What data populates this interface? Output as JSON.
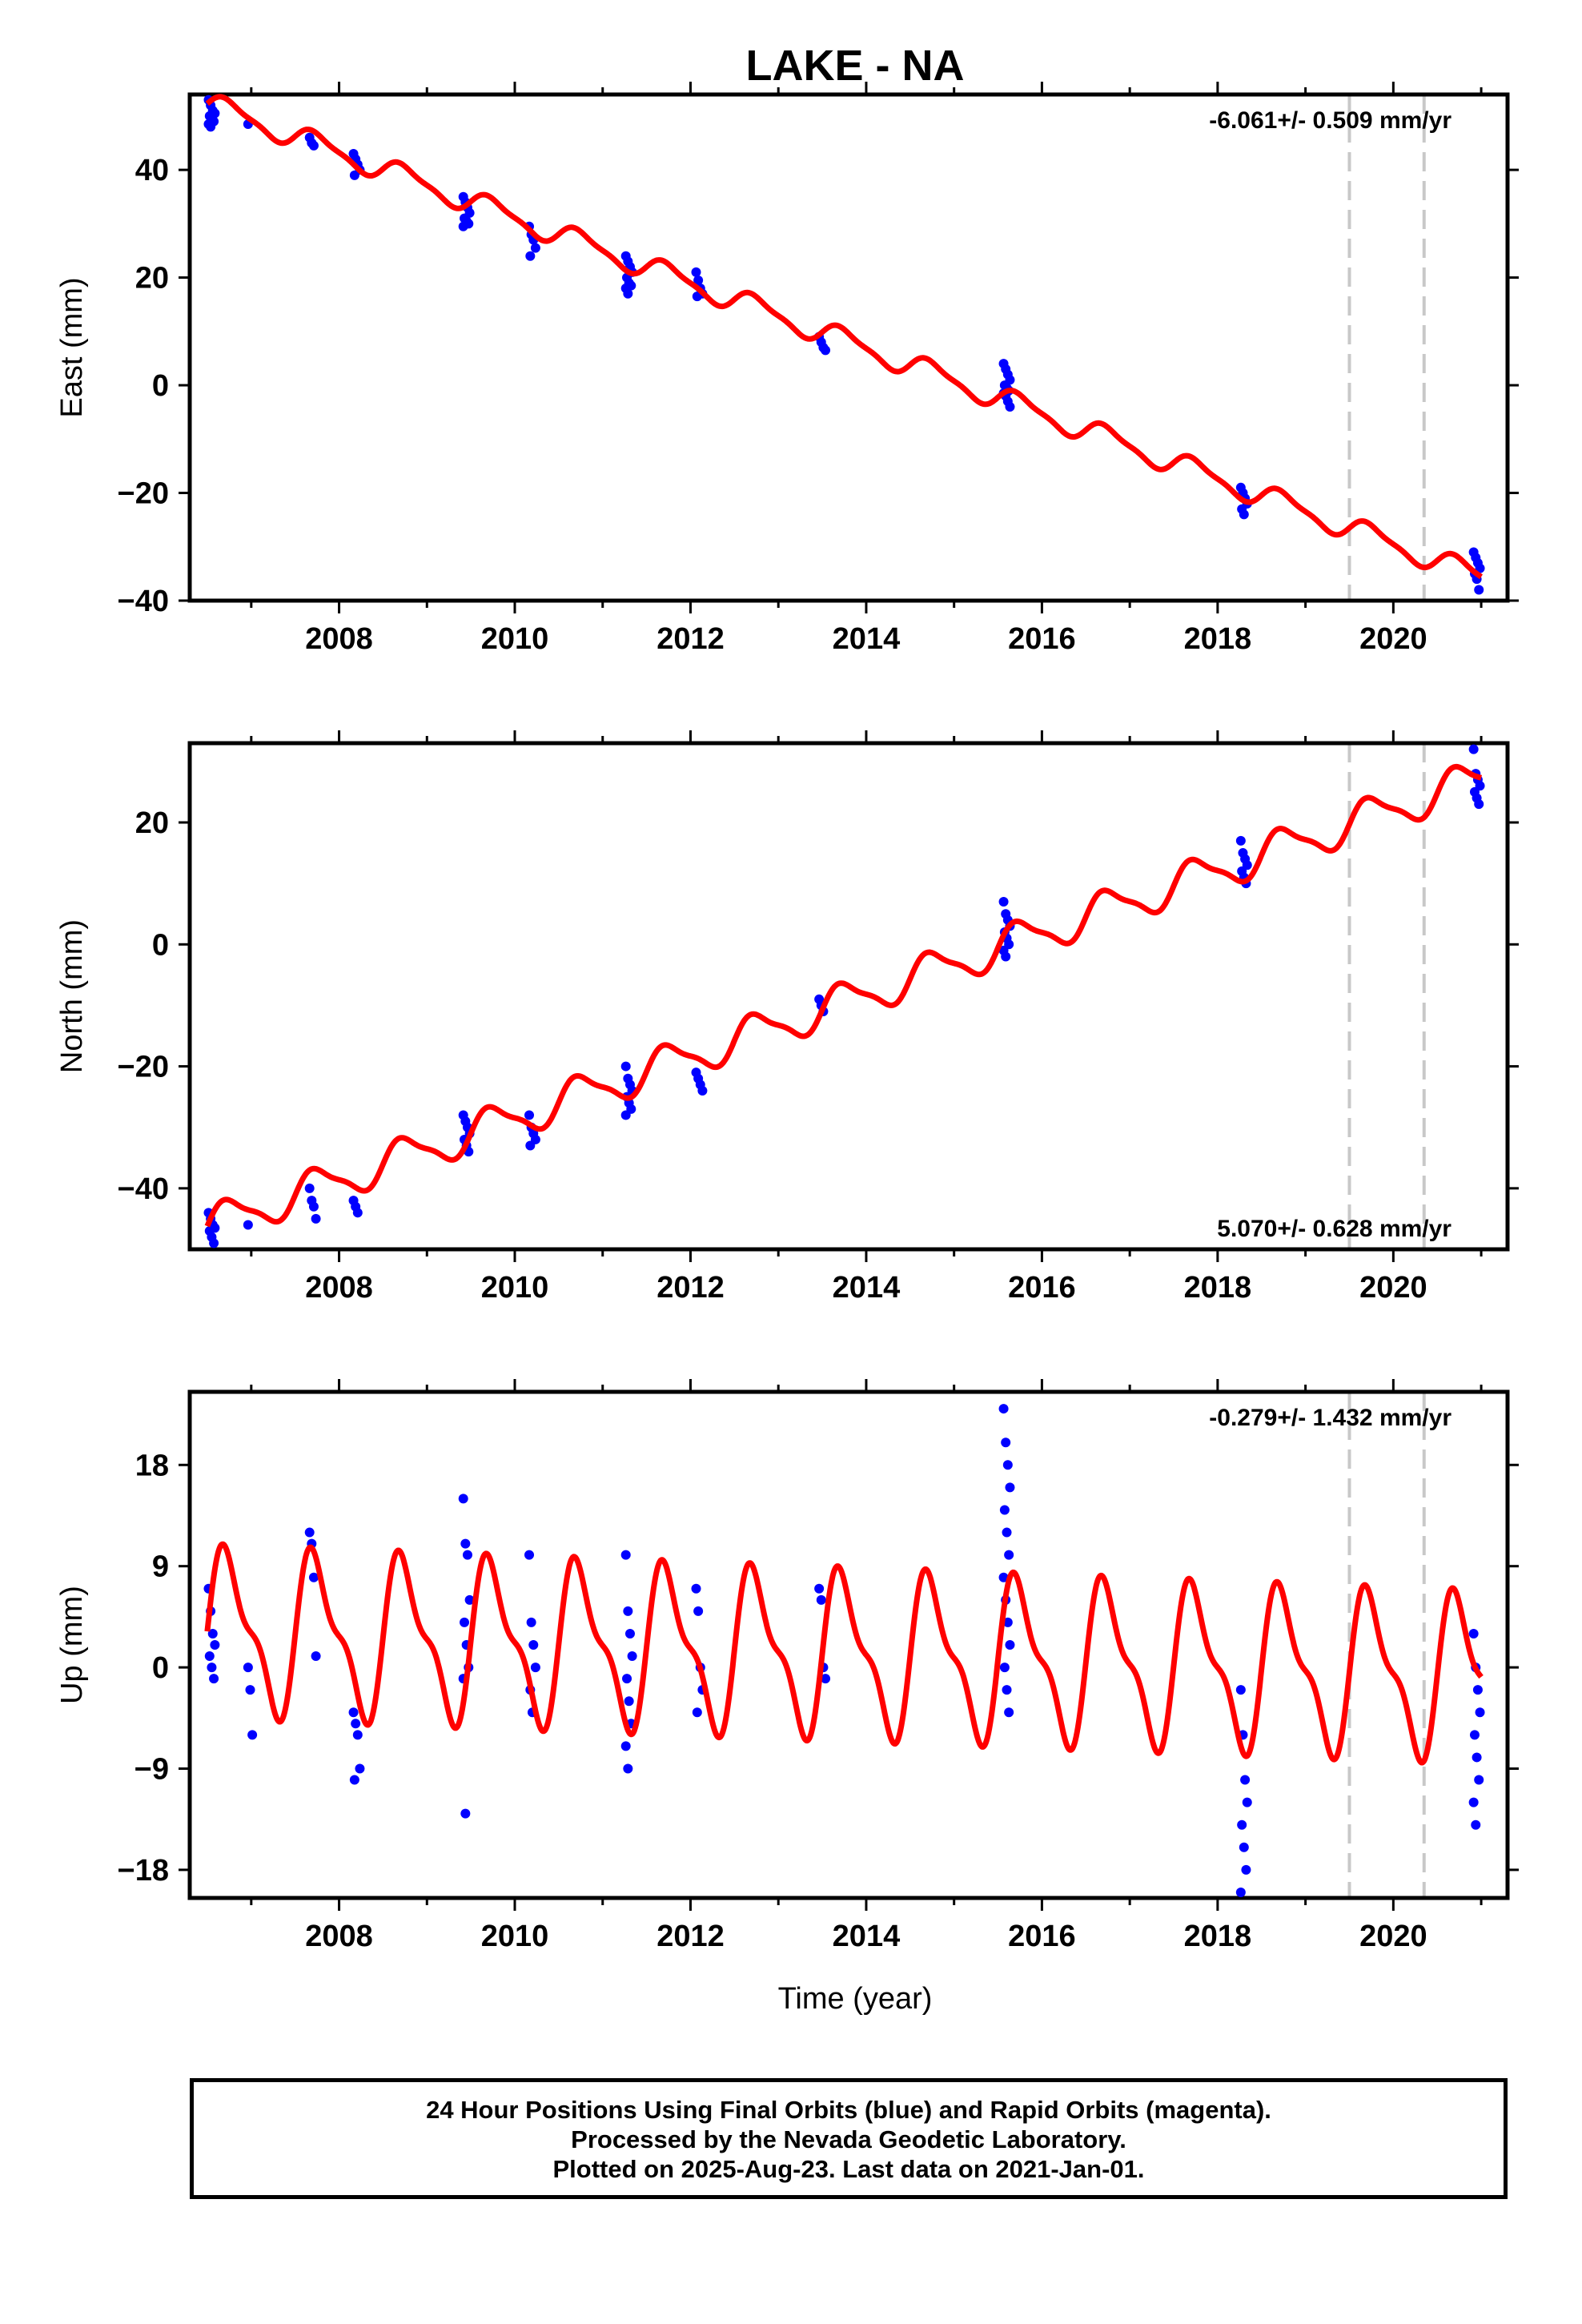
{
  "figure_title": "LAKE - NA",
  "xlabel": "Time (year)",
  "footer": {
    "line1": "24 Hour Positions Using Final Orbits (blue) and Rapid Orbits (magenta).",
    "line2": "Processed by the Nevada Geodetic Laboratory.",
    "line3": "Plotted on 2025-Aug-23. Last data on 2021-Jan-01."
  },
  "chart_data": [
    {
      "type": "scatter",
      "panel": "east",
      "ylabel": "East (mm)",
      "rate_label": "-6.061+/- 0.509 mm/yr",
      "rate_position": "top-right",
      "xlim": [
        2006.3,
        2021.3
      ],
      "ylim": [
        -40,
        54
      ],
      "x_ticks": [
        2008,
        2010,
        2012,
        2014,
        2016,
        2018,
        2020
      ],
      "y_ticks": [
        -40,
        -20,
        0,
        20,
        40
      ],
      "grid": false,
      "equipment_changes": [
        2019.5,
        2020.35
      ],
      "points_color": "#0000ff",
      "model_color": "#ff0000",
      "model": {
        "type": "linear+seasonal",
        "t0": 2006.5,
        "y0": 52.3,
        "slope": -6.061,
        "annual_amplitude": 2.0,
        "semiannual_amplitude": 0.6
      },
      "point_groups": [
        {
          "t": 2006.55,
          "values": [
            53,
            52,
            51,
            50.5,
            50,
            49.5,
            49,
            48.5,
            48
          ]
        },
        {
          "t": 2007.0,
          "values": [
            48.5
          ]
        },
        {
          "t": 2007.7,
          "values": [
            46,
            45,
            44.5
          ]
        },
        {
          "t": 2008.2,
          "values": [
            43,
            42,
            41,
            40,
            39
          ]
        },
        {
          "t": 2009.45,
          "values": [
            35,
            34,
            33,
            32,
            31,
            30.5,
            30,
            29.5
          ]
        },
        {
          "t": 2010.2,
          "values": [
            29.5,
            28,
            27,
            25.5,
            24
          ]
        },
        {
          "t": 2011.3,
          "values": [
            24,
            23,
            22,
            21,
            20,
            19,
            18.5,
            18,
            17
          ]
        },
        {
          "t": 2012.1,
          "values": [
            21,
            19.5,
            18,
            17,
            16.5
          ]
        },
        {
          "t": 2013.5,
          "values": [
            9,
            8,
            7,
            6.5
          ]
        },
        {
          "t": 2015.6,
          "values": [
            4,
            3,
            2,
            1,
            0,
            -0.5,
            -1,
            -1.5,
            -2,
            -3,
            -4
          ]
        },
        {
          "t": 2018.3,
          "values": [
            -19,
            -20,
            -21,
            -22,
            -23,
            -24
          ]
        },
        {
          "t": 2020.95,
          "values": [
            -31,
            -32,
            -33,
            -34,
            -35,
            -36,
            -38
          ]
        }
      ]
    },
    {
      "type": "scatter",
      "panel": "north",
      "ylabel": "North (mm)",
      "rate_label": "5.070+/- 0.628 mm/yr",
      "rate_position": "bottom-right",
      "xlim": [
        2006.3,
        2021.3
      ],
      "ylim": [
        -50,
        33
      ],
      "x_ticks": [
        2008,
        2010,
        2012,
        2014,
        2016,
        2018,
        2020
      ],
      "y_ticks": [
        -40,
        -20,
        0,
        20
      ],
      "grid": false,
      "equipment_changes": [
        2019.5,
        2020.35
      ],
      "points_color": "#0000ff",
      "model_color": "#ff0000",
      "model": {
        "type": "linear+seasonal",
        "t0": 2006.5,
        "y0": -46.2,
        "slope": 5.07,
        "annual_amplitude": 3.0,
        "semiannual_amplitude": 0.8
      },
      "point_groups": [
        {
          "t": 2006.55,
          "values": [
            -44,
            -45,
            -46,
            -46.5,
            -47,
            -48,
            -49
          ]
        },
        {
          "t": 2007.0,
          "values": [
            -46
          ]
        },
        {
          "t": 2007.7,
          "values": [
            -40,
            -42,
            -43,
            -45
          ]
        },
        {
          "t": 2008.2,
          "values": [
            -42,
            -43,
            -44
          ]
        },
        {
          "t": 2009.45,
          "values": [
            -28,
            -29,
            -30,
            -31,
            -32,
            -33,
            -34
          ]
        },
        {
          "t": 2010.2,
          "values": [
            -28,
            -30,
            -31,
            -32,
            -33
          ]
        },
        {
          "t": 2011.3,
          "values": [
            -20,
            -22,
            -23,
            -24,
            -25,
            -26,
            -27,
            -28
          ]
        },
        {
          "t": 2012.1,
          "values": [
            -21,
            -22,
            -23,
            -24
          ]
        },
        {
          "t": 2013.5,
          "values": [
            -9,
            -10,
            -11
          ]
        },
        {
          "t": 2015.6,
          "values": [
            7,
            5,
            4,
            3,
            2,
            1,
            0,
            -1,
            -2
          ]
        },
        {
          "t": 2018.3,
          "values": [
            17,
            15,
            14,
            13,
            12,
            11,
            10
          ]
        },
        {
          "t": 2020.95,
          "values": [
            32,
            28,
            27,
            26,
            25,
            24,
            23
          ]
        }
      ]
    },
    {
      "type": "scatter",
      "panel": "up",
      "ylabel": "Up (mm)",
      "rate_label": "-0.279+/- 1.432 mm/yr",
      "rate_position": "top-right",
      "xlim": [
        2006.3,
        2021.3
      ],
      "ylim": [
        -20.5,
        24.5
      ],
      "x_ticks": [
        2008,
        2010,
        2012,
        2014,
        2016,
        2018,
        2020
      ],
      "y_ticks": [
        -18,
        -9,
        0,
        9,
        18
      ],
      "grid": false,
      "equipment_changes": [
        2019.5,
        2020.35
      ],
      "points_color": "#0000ff",
      "model_color": "#ff0000",
      "model": {
        "type": "linear+seasonal",
        "t0": 2006.5,
        "y0": 3.2,
        "slope": -0.279,
        "annual_amplitude": 6.5,
        "semiannual_amplitude": 2.5
      },
      "point_groups": [
        {
          "t": 2006.55,
          "values": [
            7,
            5,
            3,
            2,
            1,
            0,
            -1
          ]
        },
        {
          "t": 2007.0,
          "values": [
            0,
            -2,
            -6
          ]
        },
        {
          "t": 2007.7,
          "values": [
            12,
            11,
            8,
            1
          ]
        },
        {
          "t": 2008.2,
          "values": [
            -4,
            -5,
            -6,
            -9,
            -10
          ]
        },
        {
          "t": 2009.45,
          "values": [
            15,
            11,
            10,
            6,
            4,
            2,
            0,
            -1,
            -13
          ]
        },
        {
          "t": 2010.2,
          "values": [
            10,
            4,
            2,
            0,
            -2,
            -4
          ]
        },
        {
          "t": 2011.3,
          "values": [
            10,
            5,
            3,
            1,
            -1,
            -3,
            -5,
            -7,
            -9
          ]
        },
        {
          "t": 2012.1,
          "values": [
            7,
            5,
            0,
            -2,
            -4
          ]
        },
        {
          "t": 2013.5,
          "values": [
            7,
            6,
            0,
            -1
          ]
        },
        {
          "t": 2015.6,
          "values": [
            23,
            20,
            18,
            16,
            14,
            12,
            10,
            8,
            6,
            4,
            2,
            0,
            -2,
            -4
          ]
        },
        {
          "t": 2018.3,
          "values": [
            -2,
            -6,
            -10,
            -12,
            -14,
            -16,
            -18,
            -20
          ]
        },
        {
          "t": 2020.95,
          "values": [
            3,
            0,
            -2,
            -4,
            -6,
            -8,
            -10,
            -12,
            -14
          ]
        }
      ]
    }
  ]
}
